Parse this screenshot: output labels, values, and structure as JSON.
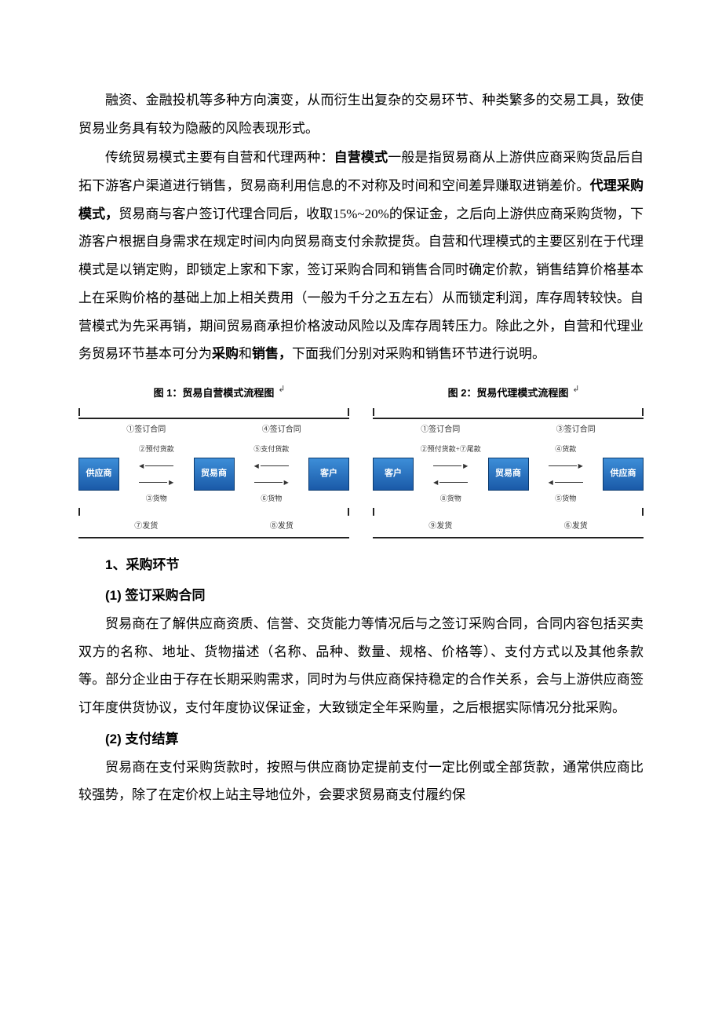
{
  "para1": {
    "text": "融资、金融投机等多种方向演变，从而衍生出复杂的交易环节、种类繁多的交易工具，致使贸易业务具有较为隐蔽的风险表现形式。"
  },
  "para2": {
    "pre": "传统贸易模式主要有自营和代理两种：",
    "bold1": "自营模式",
    "mid1": "一般是指贸易商从上游供应商采购货品后自拓下游客户渠道进行销售，贸易商利用信息的不对称及时间和空间差异赚取进销差价。",
    "bold2": "代理采购模式，",
    "mid2": "贸易商与客户签订代理合同后，收取15%~20%的保证金，之后向上游供应商采购货物，下游客户根据自身需求在规定时间内向贸易商支付余款提货。自营和代理模式的主要区别在于代理模式是以销定购，即锁定上家和下家，签订采购合同和销售合同时确定价款，销售结算价格基本上在采购价格的基础上加上相关费用（一般为千分之五左右）从而锁定利润，库存周转较快。自营模式为先采再销，期间贸易商承担价格波动风险以及库存周转压力。除此之外，自营和代理业务贸易环节基本可分为",
    "bold3": "采购",
    "mid3": "和",
    "bold4": "销售，",
    "tail": "下面我们分别对采购和销售环节进行说明。"
  },
  "diagrams": {
    "left": {
      "title": "图 1：贸易自营模式流程图",
      "top_left": "①签订合同",
      "top_right": "④签订合同",
      "nodes": [
        "供应商",
        "贸易商",
        "客户"
      ],
      "arrows_left": {
        "up_label": "②预付货款",
        "down_label": "③货物"
      },
      "arrows_right": {
        "up_label": "⑤支付货款",
        "down_label": "⑥货物"
      },
      "bottom_left": "⑦发货",
      "bottom_right": "⑧发货",
      "colors": {
        "node_bg": "#2a74c4",
        "border": "#222222",
        "text": "#333333"
      }
    },
    "right": {
      "title": "图 2：贸易代理模式流程图",
      "top_left": "①签订合同",
      "top_right": "③签订合同",
      "nodes": [
        "客户",
        "贸易商",
        "供应商"
      ],
      "arrows_left": {
        "up_label": "②预付货款+⑦尾款",
        "down_label": "⑧货物"
      },
      "arrows_right": {
        "up_label": "④货款",
        "down_label": "⑤货物"
      },
      "bottom_left": "⑨发货",
      "bottom_right": "⑥发货",
      "colors": {
        "node_bg": "#2a74c4",
        "border": "#222222",
        "text": "#333333"
      }
    }
  },
  "section1": {
    "num": "1、采购环节"
  },
  "sub1": {
    "label": "(1) 签订采购合同"
  },
  "para3": {
    "text": "贸易商在了解供应商资质、信誉、交货能力等情况后与之签订采购合同，合同内容包括买卖双方的名称、地址、货物描述（名称、品种、数量、规格、价格等）、支付方式以及其他条款等。部分企业由于存在长期采购需求，同时为与供应商保持稳定的合作关系，会与上游供应商签订年度供货协议，支付年度协议保证金，大致锁定全年采购量，之后根据实际情况分批采购。"
  },
  "sub2": {
    "label": "(2) 支付结算"
  },
  "para4": {
    "text": "贸易商在支付采购货款时，按照与供应商协定提前支付一定比例或全部货款，通常供应商比较强势，除了在定价权上站主导地位外，会要求贸易商支付履约保"
  }
}
